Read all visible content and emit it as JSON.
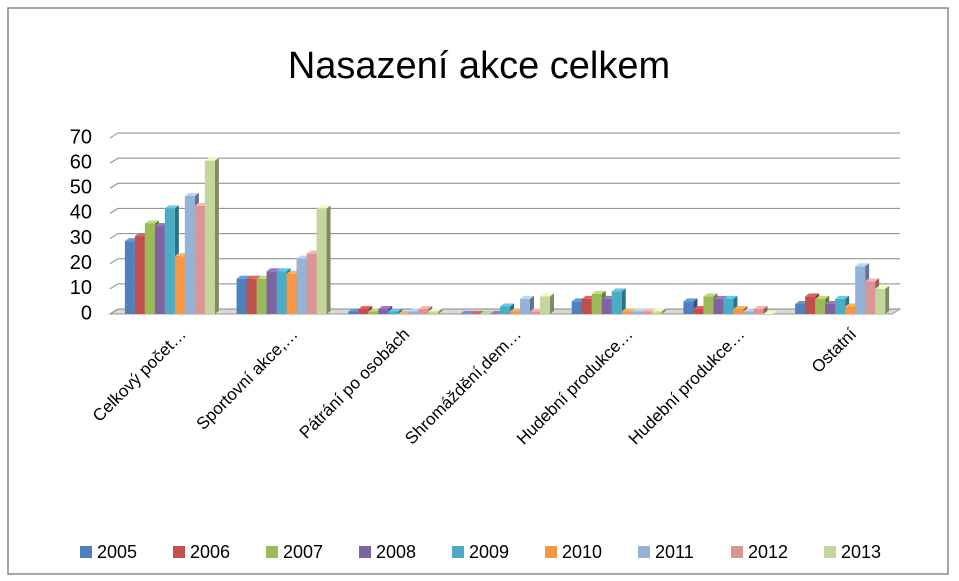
{
  "chart_data": {
    "type": "bar",
    "title": "Nasazení akce celkem",
    "categories": [
      "Celkový počet…",
      "Sportovní akce,…",
      "Pátrání po osobách",
      "Shromáždění,dem…",
      "Hudební produkce…",
      "Hudební produkce…",
      "Ostatní"
    ],
    "series": [
      {
        "name": "2005",
        "color": "#4f81bd",
        "values": [
          29,
          14,
          1,
          0,
          5,
          5,
          4
        ]
      },
      {
        "name": "2006",
        "color": "#c0504d",
        "values": [
          31,
          14,
          2,
          0,
          6,
          2,
          7
        ]
      },
      {
        "name": "2007",
        "color": "#9bbb59",
        "values": [
          36,
          14,
          1,
          0,
          8,
          7,
          6
        ]
      },
      {
        "name": "2008",
        "color": "#8064a2",
        "values": [
          35,
          17,
          2,
          0,
          6,
          6,
          4
        ]
      },
      {
        "name": "2009",
        "color": "#4bacc6",
        "values": [
          42,
          17,
          1,
          3,
          9,
          6,
          6
        ]
      },
      {
        "name": "2010",
        "color": "#f79646",
        "values": [
          23,
          16,
          0,
          1,
          1,
          2,
          3
        ]
      },
      {
        "name": "2011",
        "color": "#95b3d7",
        "values": [
          47,
          22,
          1,
          6,
          1,
          1,
          19
        ]
      },
      {
        "name": "2012",
        "color": "#d99694",
        "values": [
          43,
          24,
          2,
          1,
          1,
          2,
          13
        ]
      },
      {
        "name": "2013",
        "color": "#c3d69b",
        "values": [
          61,
          42,
          1,
          7,
          1,
          0,
          10
        ]
      }
    ],
    "ylim": [
      0,
      70
    ],
    "yticks": [
      0,
      10,
      20,
      30,
      40,
      50,
      60,
      70
    ],
    "grid": true,
    "legend": "bottom"
  }
}
